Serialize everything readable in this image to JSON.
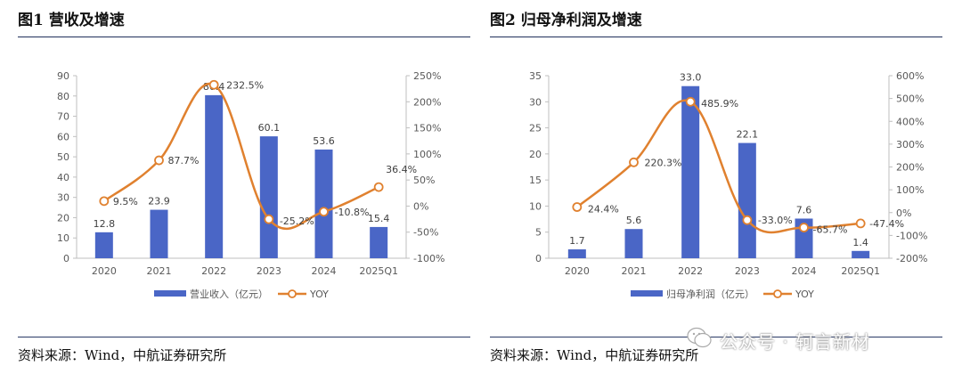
{
  "figures": [
    {
      "title": "图1 营收及增速",
      "source": "资料来源：Wind，中航证券研究所"
    },
    {
      "title": "图2 归母净利润及增速",
      "source": "资料来源：Wind，中航证券研究所"
    }
  ],
  "watermark": "公众号 · 轲言新材",
  "colors": {
    "bar": "#4a66c6",
    "line": "#e0812f",
    "axis": "#bfbfbf",
    "text": "#595959"
  },
  "chart_data": [
    {
      "type": "bar",
      "title": "营收及增速",
      "categories": [
        "2020",
        "2021",
        "2022",
        "2023",
        "2024",
        "2025Q1"
      ],
      "series": [
        {
          "name": "营业收入（亿元）",
          "type": "bar",
          "axis": "left",
          "values": [
            12.8,
            23.9,
            80.4,
            60.1,
            53.6,
            15.4
          ],
          "labels": [
            "12.8",
            "23.9",
            "80.4",
            "60.1",
            "53.6",
            "15.4"
          ]
        },
        {
          "name": "YOY",
          "type": "line",
          "axis": "right",
          "values": [
            9.5,
            87.7,
            232.5,
            -25.2,
            -10.8,
            36.4
          ],
          "labels": [
            "9.5%",
            "87.7%",
            "232.5%",
            "-25.2%",
            "-10.8%",
            "36.4%"
          ]
        }
      ],
      "ylim_left": [
        0,
        90
      ],
      "yticks_left": [
        "0",
        "10",
        "20",
        "30",
        "40",
        "50",
        "60",
        "70",
        "80",
        "90"
      ],
      "ylim_right": [
        -100,
        250
      ],
      "yticks_right": [
        "-100%",
        "-50%",
        "0%",
        "50%",
        "100%",
        "150%",
        "200%",
        "250%"
      ],
      "legend": [
        "营业收入（亿元）",
        "YOY"
      ]
    },
    {
      "type": "bar",
      "title": "归母净利润及增速",
      "categories": [
        "2020",
        "2021",
        "2022",
        "2023",
        "2024",
        "2025Q1"
      ],
      "series": [
        {
          "name": "归母净利润（亿元）",
          "type": "bar",
          "axis": "left",
          "values": [
            1.7,
            5.6,
            33.0,
            22.1,
            7.6,
            1.4
          ],
          "labels": [
            "1.7",
            "5.6",
            "33.0",
            "22.1",
            "7.6",
            "1.4"
          ]
        },
        {
          "name": "YOY",
          "type": "line",
          "axis": "right",
          "values": [
            24.4,
            220.3,
            485.9,
            -33.0,
            -65.7,
            -47.4
          ],
          "labels": [
            "24.4%",
            "220.3%",
            "485.9%",
            "-33.0%",
            "-65.7%",
            "-47.4%"
          ]
        }
      ],
      "ylim_left": [
        0,
        35
      ],
      "yticks_left": [
        "0",
        "5",
        "10",
        "15",
        "20",
        "25",
        "30",
        "35"
      ],
      "ylim_right": [
        -200,
        600
      ],
      "yticks_right": [
        "-200%",
        "-100%",
        "0%",
        "100%",
        "200%",
        "300%",
        "400%",
        "500%",
        "600%"
      ],
      "legend": [
        "归母净利润（亿元）",
        "YOY"
      ]
    }
  ]
}
